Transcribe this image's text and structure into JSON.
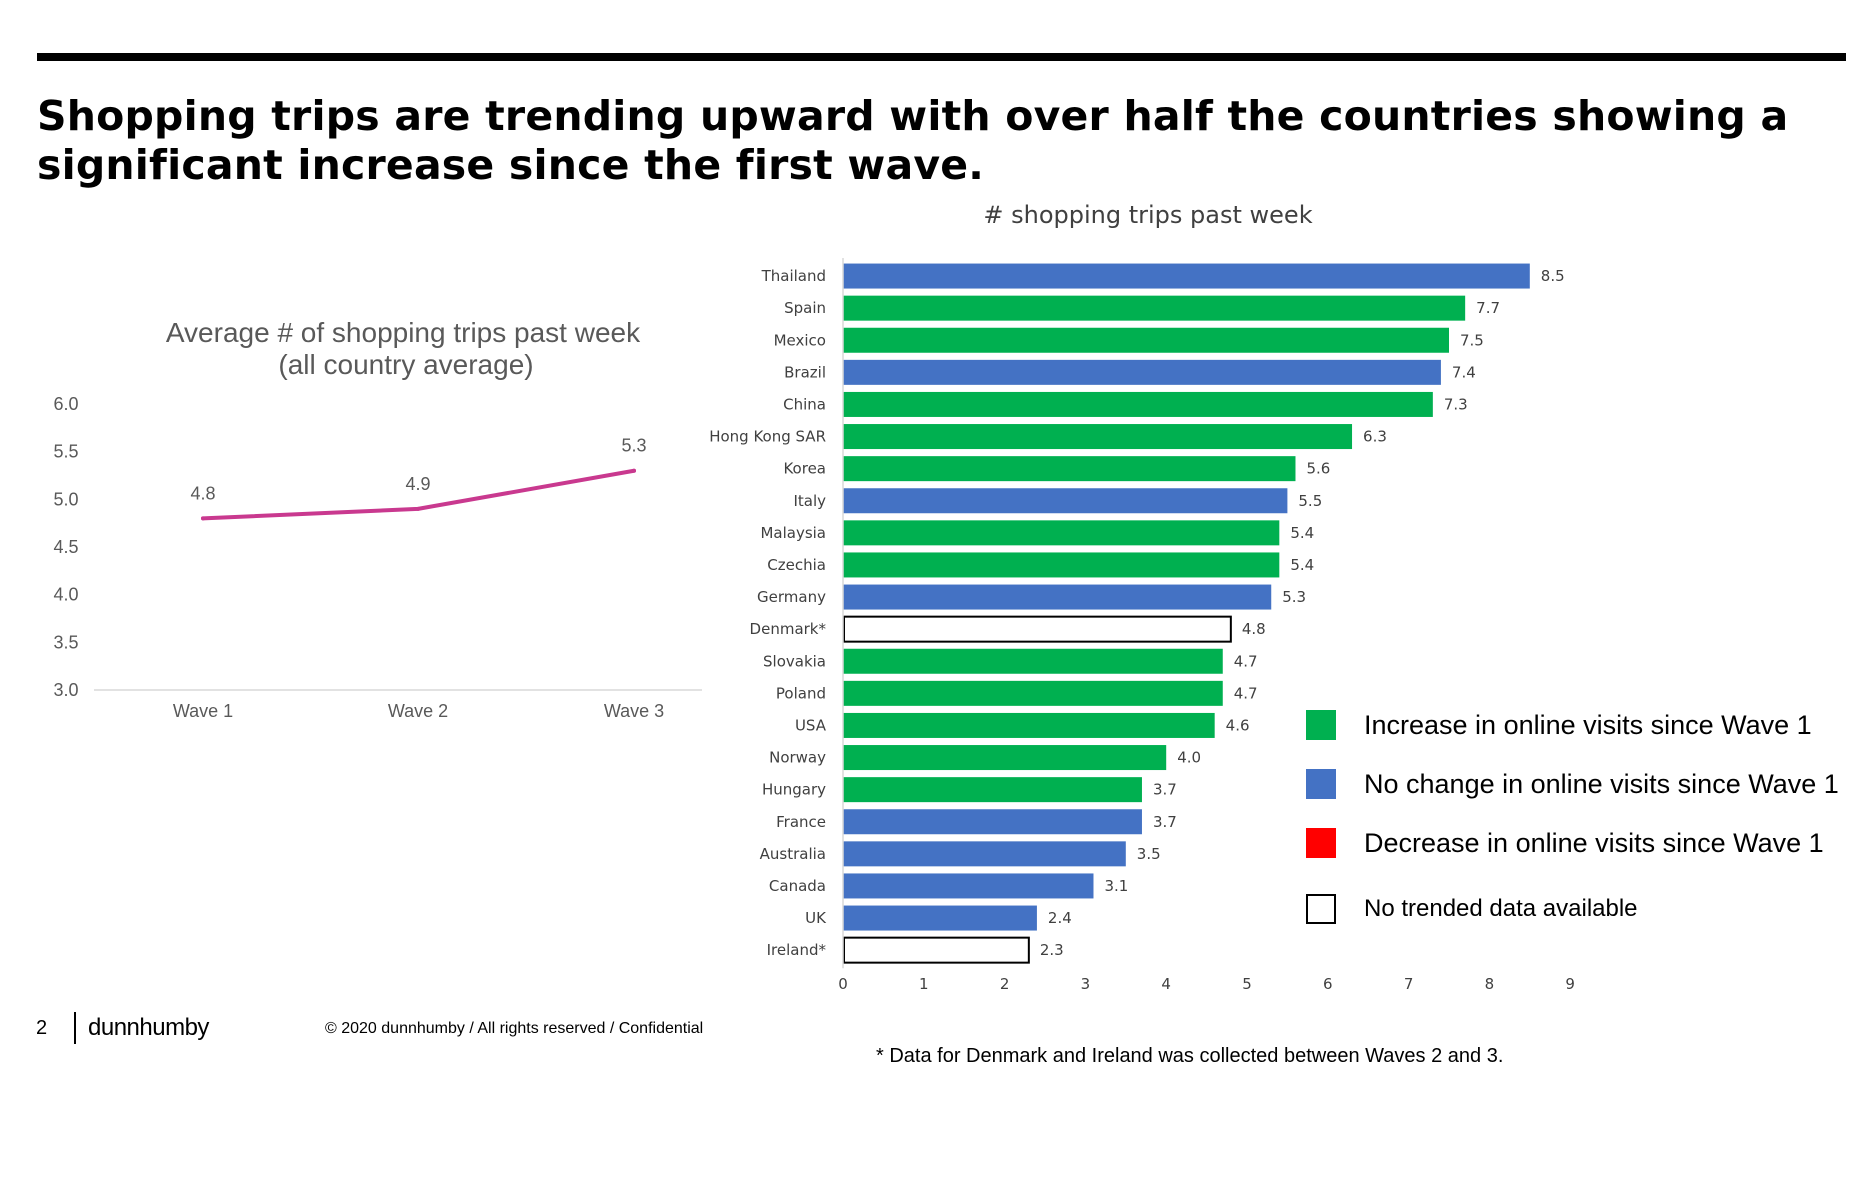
{
  "headline": "Shopping trips are trending upward with over half the countries showing a significant increase since the first wave.",
  "chart_data": [
    {
      "type": "line",
      "title": "Average # of shopping trips past week",
      "subtitle": "(all country average)",
      "categories": [
        "Wave 1",
        "Wave 2",
        "Wave 3"
      ],
      "values": [
        4.8,
        4.9,
        5.3
      ],
      "value_labels": [
        "4.8",
        "4.9",
        "5.3"
      ],
      "yticks": [
        "3.0",
        "3.5",
        "4.0",
        "4.5",
        "5.0",
        "5.5",
        "6.0"
      ],
      "ylim": [
        3.0,
        6.0
      ],
      "line_color": "#c9398f"
    },
    {
      "type": "bar",
      "orientation": "horizontal",
      "title": "# shopping trips past week",
      "categories": [
        "Thailand",
        "Spain",
        "Mexico",
        "Brazil",
        "China",
        "Hong Kong SAR",
        "Korea",
        "Italy",
        "Malaysia",
        "Czechia",
        "Germany",
        "Denmark*",
        "Slovakia",
        "Poland",
        "USA",
        "Norway",
        "Hungary",
        "France",
        "Australia",
        "Canada",
        "UK",
        "Ireland*"
      ],
      "values": [
        8.5,
        7.7,
        7.5,
        7.4,
        7.3,
        6.3,
        5.6,
        5.5,
        5.4,
        5.4,
        5.3,
        4.8,
        4.7,
        4.7,
        4.6,
        4.0,
        3.7,
        3.7,
        3.5,
        3.1,
        2.4,
        2.3
      ],
      "value_labels": [
        "8.5",
        "7.7",
        "7.5",
        "7.4",
        "7.3",
        "6.3",
        "5.6",
        "5.5",
        "5.4",
        "5.4",
        "5.3",
        "4.8",
        "4.7",
        "4.7",
        "4.6",
        "4.0",
        "3.7",
        "3.7",
        "3.5",
        "3.1",
        "2.4",
        "2.3"
      ],
      "status": [
        "no_change",
        "increase",
        "increase",
        "no_change",
        "increase",
        "increase",
        "increase",
        "no_change",
        "increase",
        "increase",
        "no_change",
        "no_data",
        "increase",
        "increase",
        "increase",
        "increase",
        "increase",
        "no_change",
        "no_change",
        "no_change",
        "no_change",
        "no_data"
      ],
      "xticks": [
        "0",
        "1",
        "2",
        "3",
        "4",
        "5",
        "6",
        "7",
        "8",
        "9"
      ],
      "xlim": [
        0,
        9
      ]
    }
  ],
  "legend": [
    {
      "key": "increase",
      "label": "Increase in online visits since Wave 1",
      "color": "#00b050"
    },
    {
      "key": "no_change",
      "label": "No change in online visits since Wave 1",
      "color": "#4472c4"
    },
    {
      "key": "decrease",
      "label": "Decrease in online visits since Wave 1",
      "color": "#ff0000"
    },
    {
      "key": "no_data",
      "label": "No trended data available",
      "color": "#ffffff"
    }
  ],
  "footer": {
    "page_number": "2",
    "brand": "dunnhumby",
    "copyright": "© 2020 dunnhumby / All rights reserved / Confidential"
  },
  "footnote": "* Data for Denmark and Ireland was collected between Waves 2 and 3."
}
